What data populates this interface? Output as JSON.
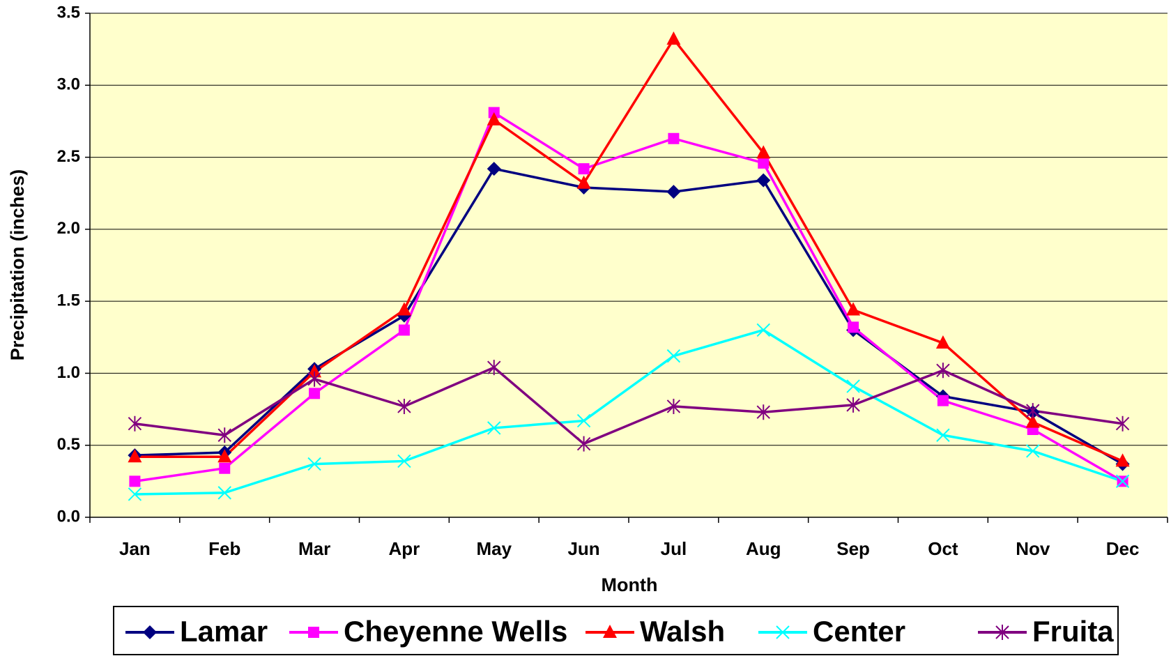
{
  "chart_data": {
    "type": "line",
    "x_label": "Month",
    "y_label": "Precipitation (inches)",
    "categories": [
      "Jan",
      "Feb",
      "Mar",
      "Apr",
      "May",
      "Jun",
      "Jul",
      "Aug",
      "Sep",
      "Oct",
      "Nov",
      "Dec"
    ],
    "series": [
      {
        "name": "Lamar",
        "color": "#000080",
        "marker": "diamond",
        "values": [
          0.43,
          0.45,
          1.03,
          1.4,
          2.42,
          2.29,
          2.26,
          2.34,
          1.3,
          0.84,
          0.73,
          0.37
        ]
      },
      {
        "name": "Cheyenne Wells",
        "color": "#ff00ff",
        "marker": "square",
        "values": [
          0.25,
          0.34,
          0.86,
          1.3,
          2.81,
          2.42,
          2.63,
          2.46,
          1.32,
          0.81,
          0.61,
          0.25
        ]
      },
      {
        "name": "Walsh",
        "color": "#ff0000",
        "marker": "triangle",
        "values": [
          0.42,
          0.42,
          1.01,
          1.44,
          2.76,
          2.32,
          3.32,
          2.53,
          1.44,
          1.21,
          0.66,
          0.39
        ]
      },
      {
        "name": "Center",
        "color": "#00ffff",
        "marker": "x",
        "values": [
          0.16,
          0.17,
          0.37,
          0.39,
          0.62,
          0.67,
          1.12,
          1.3,
          0.91,
          0.57,
          0.46,
          0.25
        ]
      },
      {
        "name": "Fruita",
        "color": "#800080",
        "marker": "star",
        "values": [
          0.65,
          0.57,
          0.96,
          0.77,
          1.04,
          0.51,
          0.77,
          0.73,
          0.78,
          1.02,
          0.74,
          0.65
        ]
      }
    ],
    "ylim": [
      0,
      3.5
    ],
    "yticks": [
      {
        "value": 0,
        "label": "0.0"
      },
      0.5,
      {
        "value": 1,
        "label": "1.0"
      },
      1.5,
      {
        "value": 2,
        "label": "2.0"
      },
      2.5,
      {
        "value": 3,
        "label": "3.0"
      },
      3.5
    ],
    "grid": true,
    "plot_background": "#ffffcc",
    "legend": "bottom"
  }
}
